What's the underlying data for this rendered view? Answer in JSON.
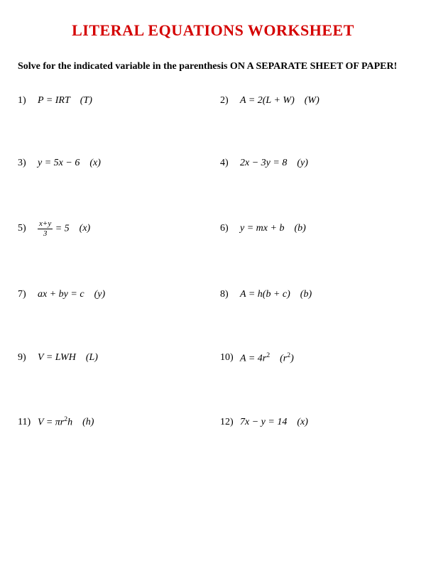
{
  "title": "LITERAL EQUATIONS WORKSHEET",
  "instructions": "Solve for the indicated variable in the parenthesis ON A SEPARATE SHEET OF PAPER!",
  "title_color": "#d40000",
  "title_fontsize": 22,
  "instructions_fontsize": 14,
  "problem_fontsize": 14,
  "background_color": "#ffffff",
  "text_color": "#000000",
  "problems": [
    {
      "number": "1)",
      "equation_html": "<i>P</i> = <i>IRT</i>",
      "solve_for": "(T)"
    },
    {
      "number": "2)",
      "equation_html": "<i>A</i> = 2(<i>L</i> + <i>W</i>)",
      "solve_for": "(W)"
    },
    {
      "number": "3)",
      "equation_html": "<i>y</i> = 5<i>x</i> − 6",
      "solve_for": "(x)"
    },
    {
      "number": "4)",
      "equation_html": "2<i>x</i> − 3<i>y</i> = 8",
      "solve_for": "(y)"
    },
    {
      "number": "5)",
      "equation_html": "<span class='frac'><span class='num'><i>x</i>+<i>y</i></span><span class='den'>3</span></span> = 5",
      "solve_for": "(x)"
    },
    {
      "number": "6)",
      "equation_html": "<i>y</i> = <i>mx</i> + <i>b</i>",
      "solve_for": "(b)"
    },
    {
      "number": "7)",
      "equation_html": "<i>ax</i> + <i>by</i> = <i>c</i>",
      "solve_for": "(y)"
    },
    {
      "number": "8)",
      "equation_html": "<i>A</i> = <i>h</i>(<i>b</i> + <i>c</i>)",
      "solve_for": "(b)"
    },
    {
      "number": "9)",
      "equation_html": "<i>V</i> = <i>LWH</i>",
      "solve_for": "(L)"
    },
    {
      "number": "10)",
      "equation_html": "<i>A</i> = 4<i>r</i><sup>2</sup>",
      "solve_for": "(r<sup>2</sup>)"
    },
    {
      "number": "11)",
      "equation_html": "<i>V</i> = π<i>r</i><sup>2</sup><i>h</i>",
      "solve_for": "(h)"
    },
    {
      "number": "12)",
      "equation_html": "7<i>x</i> − <i>y</i> = 14",
      "solve_for": "(x)"
    }
  ]
}
